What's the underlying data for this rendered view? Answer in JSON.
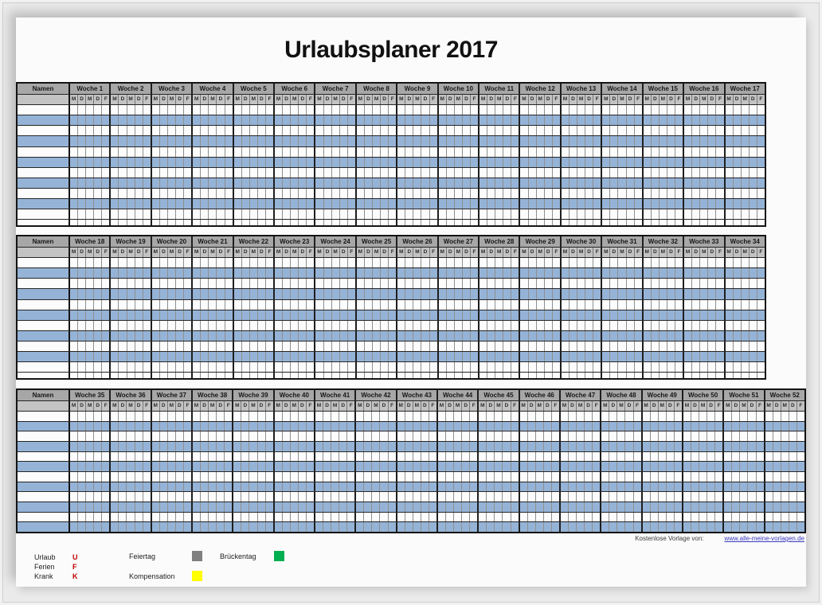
{
  "title": "Urlaubsplaner 2017",
  "planner": {
    "names_header": "Namen",
    "day_letters": [
      "M",
      "D",
      "M",
      "D",
      "F"
    ],
    "sections": [
      {
        "name": "weeks-1-17",
        "weeks": [
          "Woche 1",
          "Woche 2",
          "Woche 3",
          "Woche 4",
          "Woche 5",
          "Woche 6",
          "Woche 7",
          "Woche 8",
          "Woche 9",
          "Woche 10",
          "Woche 11",
          "Woche 12",
          "Woche 13",
          "Woche 14",
          "Woche 15",
          "Woche 16",
          "Woche 17"
        ],
        "row_pattern": [
          "w",
          "b",
          "w",
          "b",
          "w",
          "b",
          "w",
          "b",
          "w",
          "b",
          "w",
          "ws"
        ]
      },
      {
        "name": "weeks-18-34",
        "weeks": [
          "Woche 18",
          "Woche 19",
          "Woche 20",
          "Woche 21",
          "Woche 22",
          "Woche 23",
          "Woche 24",
          "Woche 25",
          "Woche 26",
          "Woche 27",
          "Woche 28",
          "Woche 29",
          "Woche 30",
          "Woche 31",
          "Woche 32",
          "Woche 33",
          "Woche 34"
        ],
        "row_pattern": [
          "w",
          "b",
          "w",
          "b",
          "w",
          "b",
          "w",
          "b",
          "w",
          "b",
          "w",
          "ws"
        ]
      },
      {
        "name": "weeks-35-52",
        "weeks": [
          "Woche 35",
          "Woche 36",
          "Woche 37",
          "Woche 38",
          "Woche 39",
          "Woche 40",
          "Woche 41",
          "Woche 42",
          "Woche 43",
          "Woche 44",
          "Woche 45",
          "Woche 46",
          "Woche 47",
          "Woche 48",
          "Woche 49",
          "Woche 50",
          "Woche 51",
          "Woche 52"
        ],
        "row_pattern": [
          "w",
          "b",
          "w",
          "b",
          "w",
          "b",
          "w",
          "b",
          "w",
          "b",
          "w",
          "b"
        ]
      }
    ],
    "colors": {
      "row_blue": "#95b3d7",
      "row_white": "#fcfcfc",
      "header_gray": "#a7a7a7",
      "subheader_gray": "#c3c3c3"
    }
  },
  "legend": {
    "letters": [
      {
        "label": "Urlaub",
        "symbol": "U"
      },
      {
        "label": "Ferien",
        "symbol": "F"
      },
      {
        "label": "Krank",
        "symbol": "K"
      }
    ],
    "letter_color": "#c00000",
    "colors": [
      {
        "label": "Feiertag",
        "color": "#808080"
      },
      {
        "label": "Kompensation",
        "color": "#ffff00"
      },
      {
        "label": "Brückentag",
        "color": "#00b050"
      }
    ]
  },
  "footer": {
    "credit_label": "Kostenlose Vorlage von:",
    "credit_link": "www.alle-meine-vorlagen.de"
  }
}
